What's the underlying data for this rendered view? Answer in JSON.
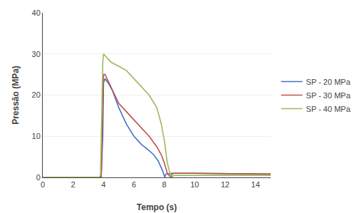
{
  "chart_data": {
    "type": "line",
    "xlabel": "Tempo (s)",
    "ylabel": "Pressão (MPa)",
    "xlim": [
      0,
      15
    ],
    "ylim": [
      0,
      40
    ],
    "xticks": [
      0,
      2,
      4,
      6,
      8,
      10,
      12,
      14
    ],
    "yticks": [
      0,
      10,
      20,
      30,
      40
    ],
    "grid": "y",
    "legend": "right",
    "series": [
      {
        "name": "SP - 20 MPa",
        "color": "#4472C4",
        "x": [
          0,
          3.5,
          3.7,
          3.85,
          3.95,
          4.0,
          4.1,
          4.3,
          4.6,
          5.0,
          5.5,
          6.0,
          6.5,
          7.0,
          7.3,
          7.6,
          7.8,
          7.9,
          8.0,
          8.05,
          8.1,
          8.5,
          9.0,
          10.0,
          15.0
        ],
        "values": [
          0,
          0,
          0,
          0.2,
          10,
          23,
          24,
          23,
          21,
          17,
          13,
          10,
          8,
          6.5,
          5.5,
          4,
          2.5,
          1.5,
          0.3,
          0.1,
          0.8,
          1.0,
          1.0,
          1.0,
          0.8
        ]
      },
      {
        "name": "SP - 30 MPa",
        "color": "#C0504D",
        "x": [
          0,
          3.5,
          3.7,
          3.85,
          3.95,
          4.0,
          4.1,
          4.5,
          5.0,
          5.5,
          6.0,
          6.5,
          7.0,
          7.5,
          7.8,
          8.0,
          8.2,
          8.35,
          8.45,
          8.5,
          8.6,
          9.0,
          10.0,
          15.0
        ],
        "values": [
          0,
          0,
          0,
          0.2,
          15,
          25,
          25,
          22,
          18,
          16,
          14,
          12,
          10,
          7.5,
          5.5,
          3.5,
          1.0,
          0.3,
          0.1,
          0.8,
          1.0,
          1.0,
          1.0,
          0.8
        ]
      },
      {
        "name": "SP - 40 MPa",
        "color": "#9BBB59",
        "x": [
          0,
          3.5,
          3.7,
          3.8,
          3.85,
          3.9,
          3.95,
          4.0,
          4.5,
          5.0,
          5.5,
          6.0,
          6.5,
          7.0,
          7.5,
          7.8,
          8.0,
          8.2,
          8.4,
          8.5,
          8.55,
          8.6,
          9.0,
          10.0,
          15.0
        ],
        "values": [
          0,
          0,
          0,
          0.5,
          10,
          22,
          28,
          30,
          28,
          27,
          26,
          24,
          22,
          20,
          17,
          13,
          9,
          3.5,
          0.5,
          0.2,
          0.1,
          0.5,
          0.5,
          0.5,
          0.5
        ]
      }
    ]
  }
}
